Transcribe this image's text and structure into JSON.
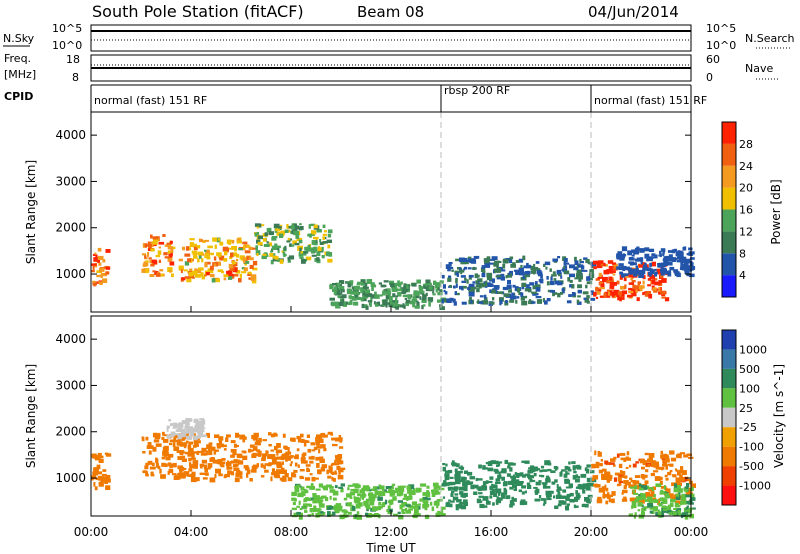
{
  "header": {
    "station": "South Pole Station (fitACF)",
    "beam": "Beam 08",
    "date": "04/Jun/2014"
  },
  "top_panels": {
    "nsky_label": "N.Sky",
    "nsearch_label": "N.Search",
    "exp_label_left_1": "10^5",
    "exp_label_left_2": "10^0",
    "exp_label_right_1": "10^5",
    "exp_label_right_2": "10^0",
    "freq_label": "Freq.",
    "freq_unit": "[MHz]",
    "freq_ticks": [
      "18",
      "8"
    ],
    "nave_label": "Nave",
    "nave_ticks": [
      "60",
      "0"
    ],
    "cpid_label": "CPID",
    "modes": [
      {
        "label": "normal (fast) 151 RF",
        "start_hour": 0,
        "end_hour": 14
      },
      {
        "label": "rbsp 200 RF",
        "start_hour": 14,
        "end_hour": 20
      },
      {
        "label": "normal (fast) 151 RF",
        "start_hour": 20,
        "end_hour": 24
      }
    ]
  },
  "colors": {
    "power_scale": [
      "#1a1aff",
      "#2255aa",
      "#3a7a55",
      "#4ca45a",
      "#f0c000",
      "#f59a20",
      "#f06010",
      "#ff2200"
    ],
    "velocity_scale": [
      "#2040b0",
      "#3a78a8",
      "#2e8a5a",
      "#60c040",
      "#c8c8c8",
      "#f0a000",
      "#f07a00",
      "#f04000",
      "#ff1010"
    ]
  },
  "chart_data": [
    {
      "type": "heatmap",
      "name": "power",
      "xlabel": "Time UT",
      "ylabel": "Slant Range [km]",
      "x_ticks": [
        "00:00",
        "04:00",
        "08:00",
        "12:00",
        "16:00",
        "20:00",
        "00:00"
      ],
      "xlim": [
        0,
        24
      ],
      "y_ticks": [
        1000,
        2000,
        3000,
        4000
      ],
      "ylim": [
        180,
        4500
      ],
      "colorbar": {
        "label": "Power [dB]",
        "ticks": [
          4,
          8,
          12,
          16,
          20,
          24,
          28
        ],
        "range": [
          0,
          32
        ]
      },
      "regions": [
        {
          "t0": 0.0,
          "t1": 0.6,
          "r0": 800,
          "r1": 1600,
          "value": 26
        },
        {
          "t0": 2.0,
          "t1": 3.2,
          "r0": 1000,
          "r1": 1900,
          "value": 24
        },
        {
          "t0": 3.5,
          "t1": 6.5,
          "r0": 900,
          "r1": 1800,
          "value": 22
        },
        {
          "t0": 6.5,
          "t1": 9.5,
          "r0": 1300,
          "r1": 2100,
          "value": 14
        },
        {
          "t0": 9.5,
          "t1": 14.0,
          "r0": 300,
          "r1": 900,
          "value": 12
        },
        {
          "t0": 14.0,
          "t1": 20.0,
          "r0": 400,
          "r1": 1400,
          "value": 8
        },
        {
          "t0": 20.0,
          "t1": 23.0,
          "r0": 500,
          "r1": 1300,
          "value": 30
        },
        {
          "t0": 21.0,
          "t1": 24.0,
          "r0": 1000,
          "r1": 1600,
          "value": 6
        }
      ]
    },
    {
      "type": "heatmap",
      "name": "velocity",
      "xlabel": "Time UT",
      "ylabel": "Slant Range [km]",
      "x_ticks": [
        "00:00",
        "04:00",
        "08:00",
        "12:00",
        "16:00",
        "20:00",
        "00:00"
      ],
      "xlim": [
        0,
        24
      ],
      "y_ticks": [
        1000,
        2000,
        3000,
        4000
      ],
      "ylim": [
        180,
        4500
      ],
      "colorbar": {
        "label": "Velocity [m s^-1]",
        "ticks": [
          "1000",
          "500",
          "100",
          "25",
          "-25",
          "-100",
          "-500",
          "-1000"
        ]
      },
      "regions": [
        {
          "t0": 0.0,
          "t1": 0.6,
          "r0": 800,
          "r1": 1600,
          "value": -200
        },
        {
          "t0": 2.0,
          "t1": 10.0,
          "r0": 1000,
          "r1": 2000,
          "value": -200
        },
        {
          "t0": 3.0,
          "t1": 4.5,
          "r0": 1900,
          "r1": 2300,
          "value": 0
        },
        {
          "t0": 8.0,
          "t1": 14.0,
          "r0": 200,
          "r1": 900,
          "value": 80
        },
        {
          "t0": 14.0,
          "t1": 20.0,
          "r0": 400,
          "r1": 1400,
          "value": 300
        },
        {
          "t0": 20.0,
          "t1": 24.0,
          "r0": 500,
          "r1": 1600,
          "value": -400
        },
        {
          "t0": 21.5,
          "t1": 24.0,
          "r0": 200,
          "r1": 900,
          "value": 90
        }
      ]
    }
  ]
}
